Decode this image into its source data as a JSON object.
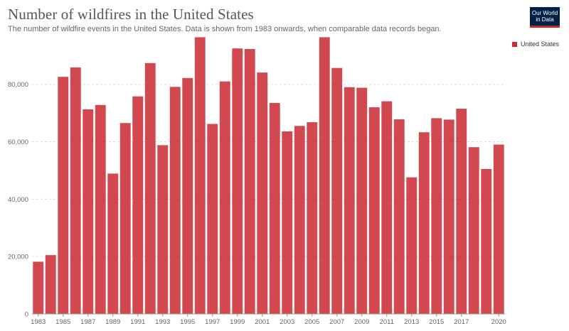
{
  "header": {
    "title": "Number of wildfires in the United States",
    "subtitle": "The number of wildfire events in the United States. Data is shown from 1983 onwards, when comparable data records began."
  },
  "logo": {
    "line1": "Our World",
    "line2": "in Data"
  },
  "legend": {
    "label": "United States",
    "color": "#c9292f"
  },
  "chart_data": {
    "type": "bar",
    "title": "Number of wildfires in the United States",
    "xlabel": "",
    "ylabel": "",
    "ylim": [
      0,
      97000
    ],
    "yticks": [
      0,
      20000,
      40000,
      60000,
      80000
    ],
    "ytick_labels": [
      "0",
      "20,000",
      "40,000",
      "60,000",
      "80,000"
    ],
    "xtick_labels": [
      "1983",
      "1985",
      "1987",
      "1989",
      "1991",
      "1993",
      "1995",
      "1997",
      "1999",
      "2001",
      "2003",
      "2005",
      "2007",
      "2009",
      "2011",
      "2013",
      "2015",
      "2017",
      "2020"
    ],
    "grid": true,
    "legend_position": "top-right",
    "bar_color": "#c9292f",
    "categories": [
      "1983",
      "1984",
      "1985",
      "1986",
      "1987",
      "1988",
      "1989",
      "1990",
      "1991",
      "1992",
      "1993",
      "1994",
      "1995",
      "1996",
      "1997",
      "1998",
      "1999",
      "2000",
      "2001",
      "2002",
      "2003",
      "2004",
      "2005",
      "2006",
      "2007",
      "2008",
      "2009",
      "2010",
      "2011",
      "2012",
      "2013",
      "2014",
      "2015",
      "2016",
      "2017",
      "2018",
      "2019",
      "2020"
    ],
    "series": [
      {
        "name": "United States",
        "values": [
          18200,
          20500,
          82600,
          85900,
          71300,
          72800,
          48900,
          66500,
          75800,
          87400,
          58800,
          79100,
          82200,
          96400,
          66200,
          81000,
          92500,
          92300,
          84100,
          73500,
          63600,
          65500,
          66800,
          96400,
          85700,
          79000,
          78800,
          72000,
          74100,
          67800,
          47600,
          63300,
          68200,
          67700,
          71500,
          58100,
          50500,
          59000
        ]
      }
    ]
  }
}
